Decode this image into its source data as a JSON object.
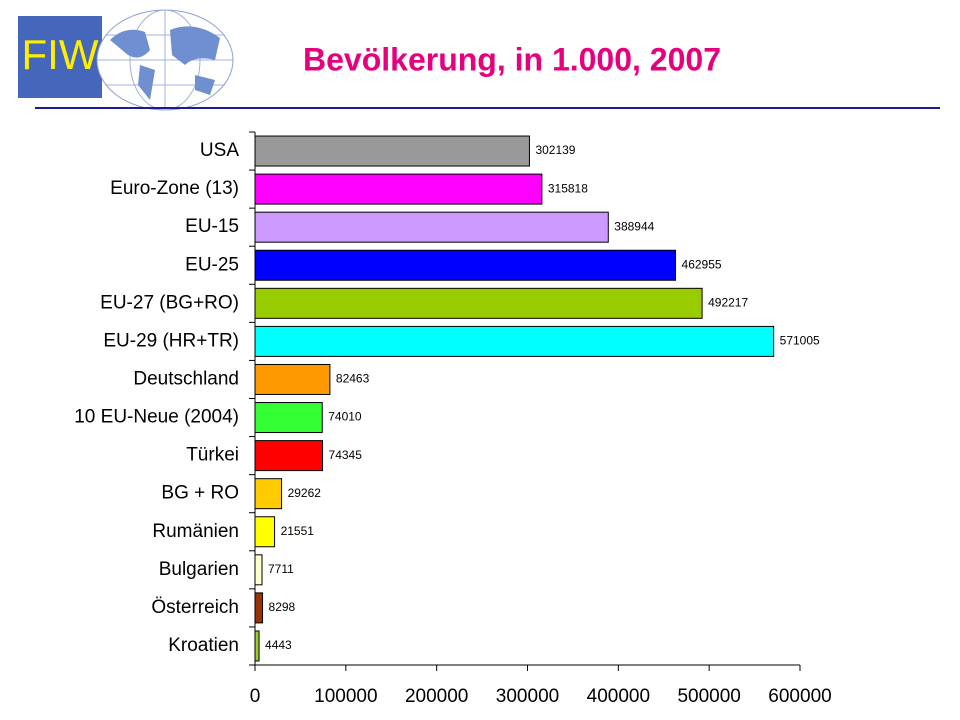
{
  "logo_text": "FIW",
  "chart_data": {
    "type": "bar",
    "orientation": "horizontal",
    "title": "Bevölkerung, in 1.000, 2007",
    "categories": [
      "USA",
      "Euro-Zone (13)",
      "EU-15",
      "EU-25",
      "EU-27 (BG+RO)",
      "EU-29 (HR+TR)",
      "Deutschland",
      "10 EU-Neue (2004)",
      "Türkei",
      "BG + RO",
      "Rumänien",
      "Bulgarien",
      "Österreich",
      "Kroatien"
    ],
    "values": [
      302139,
      315818,
      388944,
      462955,
      492217,
      571005,
      82463,
      74010,
      74345,
      29262,
      21551,
      7711,
      8298,
      4443
    ],
    "colors": [
      "#999999",
      "#ff00ff",
      "#cc99ff",
      "#0000ff",
      "#99cc00",
      "#00ffff",
      "#ff9900",
      "#33ff33",
      "#ff0000",
      "#ffcc00",
      "#ffff00",
      "#ffffcc",
      "#993300",
      "#99cc33"
    ],
    "xlim": [
      0,
      600000
    ],
    "xticks": [
      0,
      100000,
      200000,
      300000,
      400000,
      500000,
      600000
    ]
  }
}
